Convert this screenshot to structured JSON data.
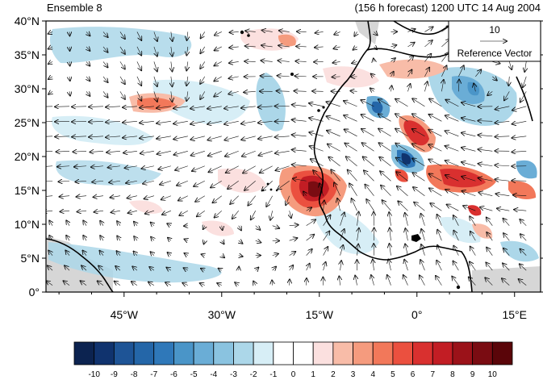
{
  "titles": {
    "left": "Ensemble 8",
    "right": "(156 h forecast) 1200 UTC 14 Aug 2004"
  },
  "map": {
    "lat_labels": [
      "0°",
      "5°N",
      "10°N",
      "15°N",
      "20°N",
      "25°N",
      "30°N",
      "35°N",
      "40°N"
    ],
    "lon_labels": [
      "45°W",
      "30°W",
      "15°W",
      "0°",
      "15°E"
    ],
    "lat_range": [
      0,
      40
    ],
    "lon_range": [
      -57,
      19
    ],
    "background": "#ffffff",
    "land_mask_color": "#d6d6d6",
    "coast_color": "#000000"
  },
  "reference_vector": {
    "value": "10",
    "label": "Reference Vector"
  },
  "colorbar": {
    "labels": [
      "-10",
      "-9",
      "-8",
      "-7",
      "-6",
      "-5",
      "-4",
      "-3",
      "-2",
      "-1",
      "0",
      "1",
      "2",
      "3",
      "4",
      "5",
      "6",
      "7",
      "8",
      "9",
      "10"
    ],
    "colors": [
      "#0c2350",
      "#10336e",
      "#1e5496",
      "#2466a8",
      "#2f78b9",
      "#4a95c8",
      "#6aadd6",
      "#8ac3e0",
      "#acd7e9",
      "#d7eef6",
      "#ffffff",
      "#ffffff",
      "#fbe0df",
      "#f8bca8",
      "#f59b7e",
      "#f2785a",
      "#eb503f",
      "#d9302f",
      "#c21d24",
      "#9b1219",
      "#7a0c12",
      "#5a0509"
    ]
  }
}
